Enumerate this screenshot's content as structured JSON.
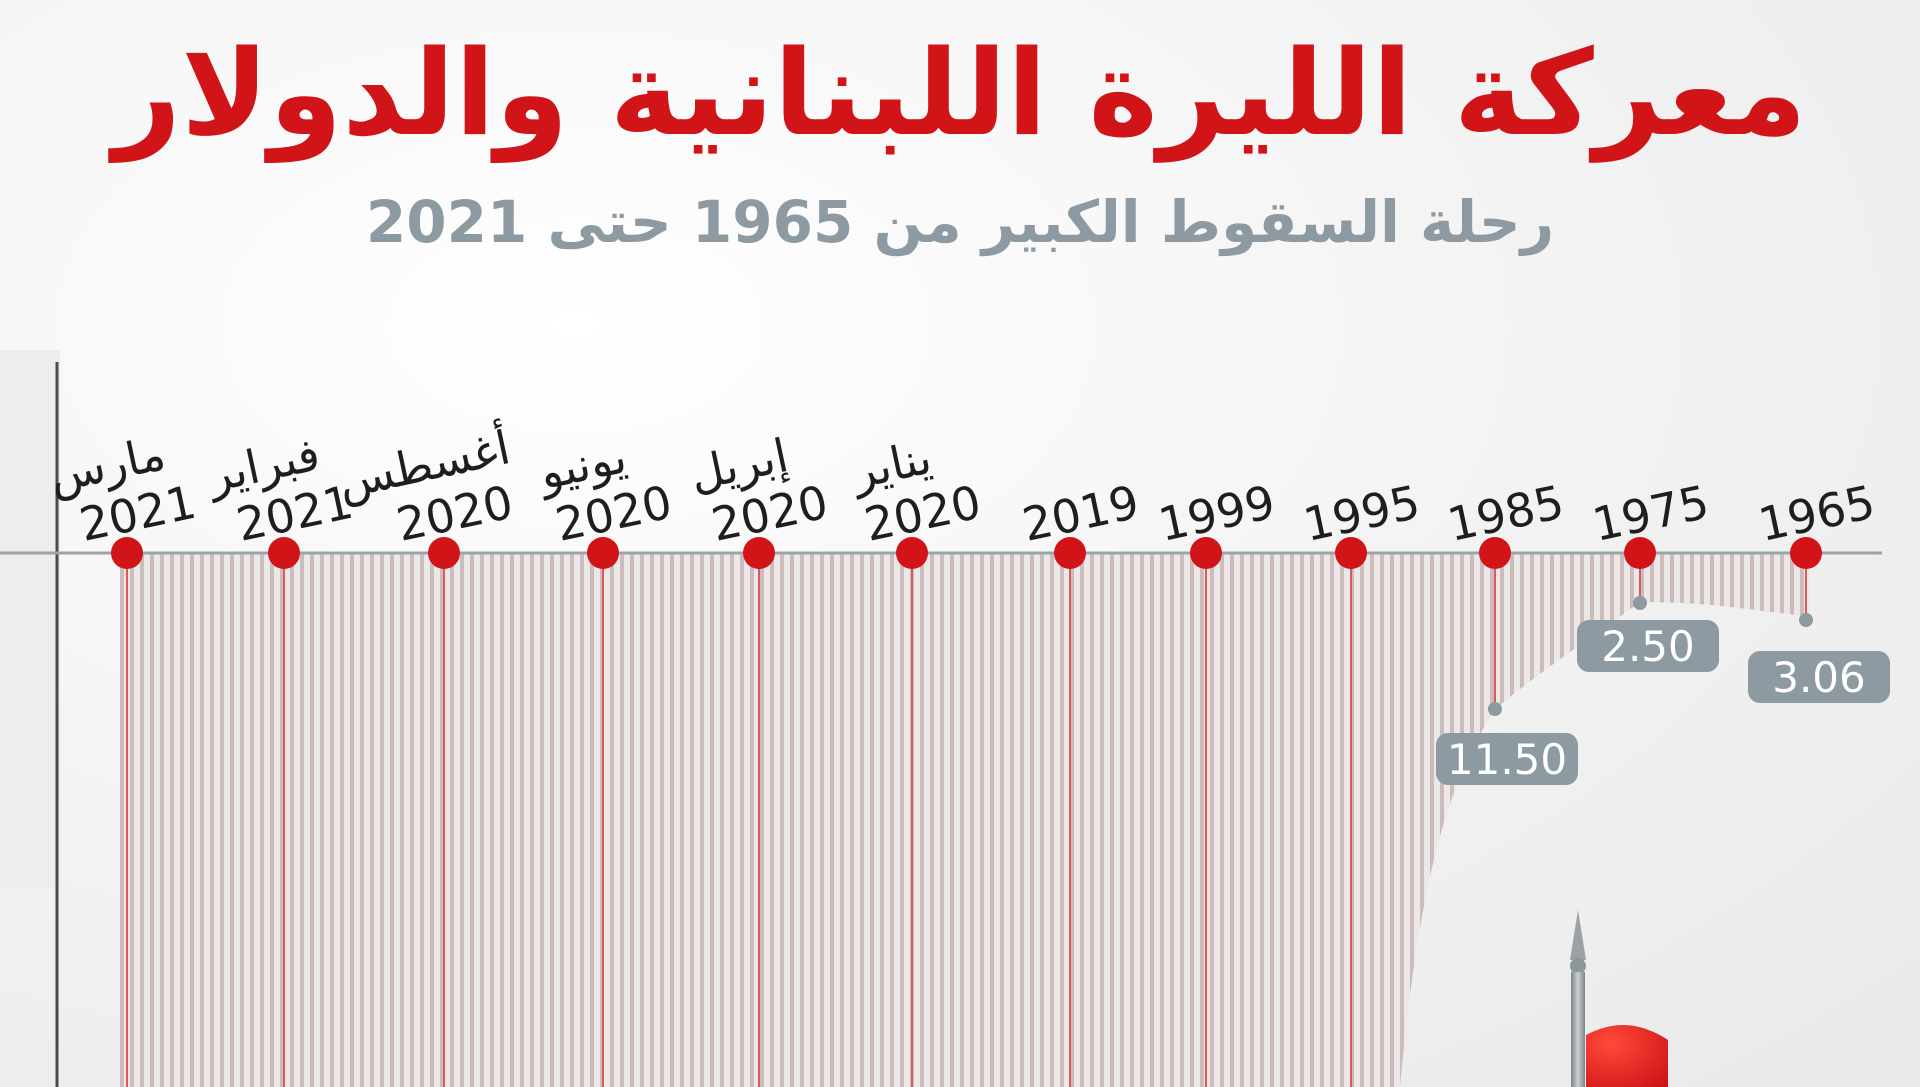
{
  "header": {
    "title": "معركة الليرة اللبنانية والدولار",
    "subtitle": "رحلة السقوط الكبير من 1965 حتى 2021"
  },
  "colors": {
    "accent": "#d01418",
    "subtitle": "#8d9aa1",
    "value_box": "#8d9aa1",
    "stripe": "#cdbcbc"
  },
  "chart_data": {
    "type": "area",
    "orientation": "inverted-timeline",
    "categories": [
      {
        "month": "",
        "year": "1965"
      },
      {
        "month": "",
        "year": "1975"
      },
      {
        "month": "",
        "year": "1985"
      },
      {
        "month": "",
        "year": "1995"
      },
      {
        "month": "",
        "year": "1999"
      },
      {
        "month": "",
        "year": "2019"
      },
      {
        "month": "يناير",
        "year": "2020"
      },
      {
        "month": "إبريل",
        "year": "2020"
      },
      {
        "month": "يونيو",
        "year": "2020"
      },
      {
        "month": "أغسطس",
        "year": "2020"
      },
      {
        "month": "فبراير",
        "year": "2021"
      },
      {
        "month": "مارس",
        "year": "2021"
      }
    ],
    "value_labels": [
      "3.06",
      "2.50",
      "11.50",
      null,
      null,
      null,
      null,
      null,
      null,
      null,
      null,
      null
    ],
    "values": [
      3.06,
      2.5,
      11.5,
      null,
      null,
      null,
      null,
      null,
      null,
      null,
      null,
      null
    ],
    "legend": "none"
  }
}
